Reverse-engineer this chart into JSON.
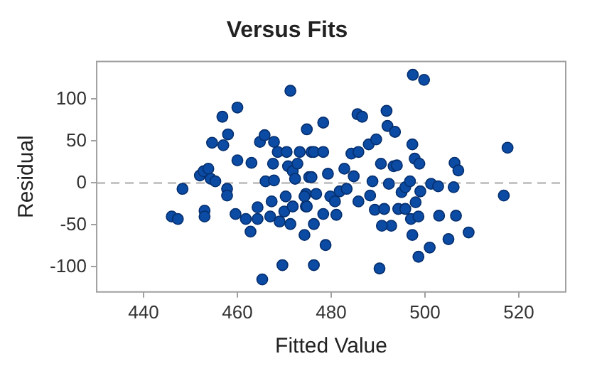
{
  "chart_data": {
    "type": "scatter",
    "title": "Versus Fits",
    "xlabel": "Fitted Value",
    "ylabel": "Residual",
    "xlim": [
      430,
      530
    ],
    "xticks": [
      440,
      460,
      480,
      500,
      520
    ],
    "ylim": [
      -130,
      145
    ],
    "yticks": [
      -100,
      -50,
      0,
      50,
      100
    ],
    "grid": false,
    "legend": false,
    "marker": "circle",
    "ref_lines": [
      {
        "axis": "y",
        "value": 0,
        "color": "#a8a8a8",
        "line_style": "dashed"
      }
    ],
    "series": [
      {
        "color": "#0b4ba3",
        "x": [
          446,
          447.3,
          448.3,
          452,
          452.8,
          453.8,
          454.3,
          455.3,
          453,
          453,
          454.6,
          457,
          458,
          456.8,
          460,
          457.8,
          457.8,
          460,
          463,
          459.6,
          461.8,
          462.8,
          464.3,
          464.3,
          465.3,
          464.8,
          465.8,
          466,
          467,
          467.3,
          467.8,
          467.8,
          467.6,
          468.6,
          469,
          469.6,
          470,
          470.3,
          470.5,
          470.8,
          471.3,
          471.3,
          471.8,
          471.8,
          472.3,
          472.8,
          473.3,
          474.3,
          474.8,
          474.6,
          474.6,
          475.3,
          476.3,
          475.8,
          476.3,
          475.8,
          474.3,
          474.8,
          476.3,
          478.3,
          478.3,
          478.8,
          476.8,
          478.3,
          479.3,
          479.8,
          480.8,
          481.1,
          481.8,
          483.3,
          482.8,
          484.8,
          484.3,
          485.8,
          485.8,
          485.6,
          486.6,
          488,
          489.6,
          488.3,
          488.8,
          489.3,
          490.3,
          490.6,
          491.3,
          491.8,
          492,
          493.6,
          493.3,
          494,
          492.3,
          492.8,
          490.8,
          494.3,
          495,
          495.8,
          496.8,
          495.8,
          497,
          498.6,
          497.3,
          497.8,
          498.8,
          498,
          499,
          497.3,
          498.6,
          501,
          497.4,
          499.8,
          501.3,
          502.8,
          503,
          506.1,
          506.3,
          507.1,
          506.6,
          505,
          509.3,
          517.6,
          516.8
        ],
        "values": [
          -40,
          -43,
          -7,
          9,
          14,
          17,
          5,
          2,
          -33,
          -40,
          48,
          45,
          58,
          79,
          90,
          -7,
          -15,
          27,
          24,
          -37,
          -43,
          -58,
          -29,
          -43,
          -115,
          49,
          57,
          2,
          -40,
          -22,
          3,
          49,
          23,
          37,
          -46,
          -98,
          -34,
          -16,
          37,
          20,
          110,
          -49,
          14,
          -28,
          5,
          23,
          37,
          -62,
          64,
          -28,
          -13,
          7,
          -98,
          37,
          -49,
          7,
          -16,
          -28,
          37,
          37,
          72,
          -74,
          -13,
          -37,
          11,
          -16,
          -22,
          -38,
          -10,
          -7,
          17,
          8,
          35,
          37,
          -22,
          82,
          79,
          46,
          52,
          -15,
          2,
          -32,
          -102,
          23,
          -31,
          86,
          68,
          61,
          20,
          21,
          -1,
          -51,
          -51,
          -31,
          -11,
          -5,
          2,
          -31,
          -43,
          -40,
          46,
          29,
          23,
          -23,
          -10,
          -62,
          -88,
          -77,
          129,
          123,
          -1,
          -4,
          -39,
          -5,
          24,
          15,
          -39,
          -67,
          -59,
          42,
          -15
        ]
      }
    ]
  }
}
